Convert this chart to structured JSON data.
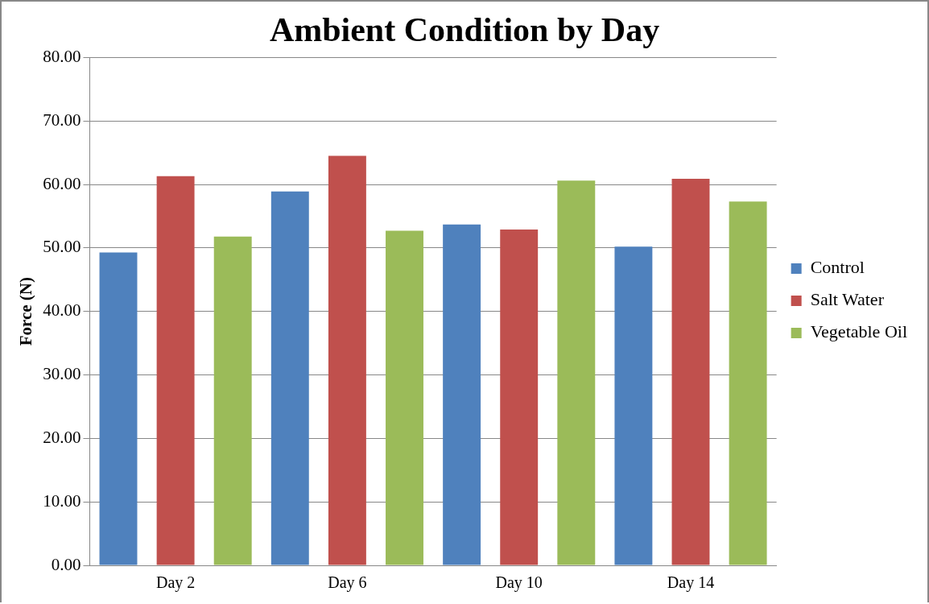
{
  "chart_data": {
    "type": "bar",
    "title": "Ambient Condition by Day",
    "ylabel": "Force (N)",
    "categories": [
      "Day 2",
      "Day 6",
      "Day 10",
      "Day 14"
    ],
    "series": [
      {
        "name": "Control",
        "color": "#4f81bd",
        "values": [
          49.3,
          58.9,
          53.7,
          50.2
        ]
      },
      {
        "name": "Salt Water",
        "color": "#c0504d",
        "values": [
          61.3,
          64.5,
          52.9,
          60.9
        ]
      },
      {
        "name": "Vegetable Oil",
        "color": "#9bbb59",
        "values": [
          51.8,
          52.7,
          60.6,
          57.3
        ]
      }
    ],
    "ylim": [
      0,
      80
    ],
    "yticks": [
      {
        "value": 0,
        "label": "0.00"
      },
      {
        "value": 10,
        "label": "10.00"
      },
      {
        "value": 20,
        "label": "20.00"
      },
      {
        "value": 30,
        "label": "30.00"
      },
      {
        "value": 40,
        "label": "40.00"
      },
      {
        "value": 50,
        "label": "50.00"
      },
      {
        "value": 60,
        "label": "60.00"
      },
      {
        "value": 70,
        "label": "70.00"
      },
      {
        "value": 80,
        "label": "80.00"
      }
    ],
    "grid": "y",
    "legend": "right"
  }
}
